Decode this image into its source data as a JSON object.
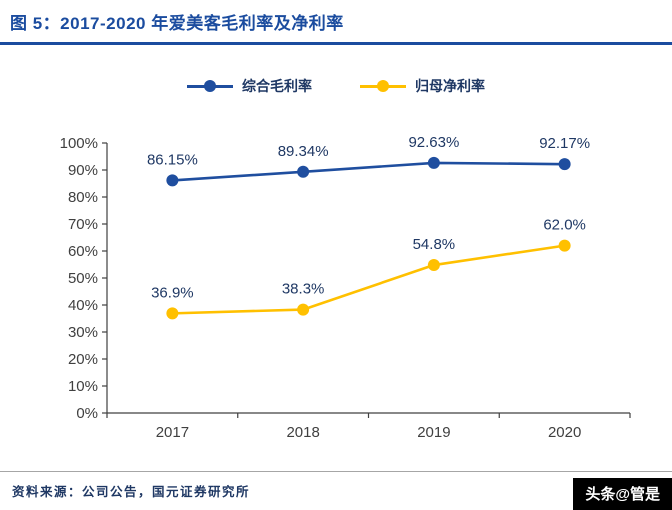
{
  "figure": {
    "title": "图 5：2017-2020 年爱美客毛利率及净利率",
    "source": "资料来源：公司公告，国元证券研究所",
    "watermark": "头条@管是",
    "accent_color": "#1B4C9F"
  },
  "chart_data": {
    "type": "line",
    "title": "2017-2020 年爱美客毛利率及净利率",
    "categories": [
      "2017",
      "2018",
      "2019",
      "2020"
    ],
    "series": [
      {
        "name": "综合毛利率",
        "color": "#1F4E9F",
        "values": [
          86.15,
          89.34,
          92.63,
          92.17
        ],
        "labels": [
          "86.15%",
          "89.34%",
          "92.63%",
          "92.17%"
        ]
      },
      {
        "name": "归母净利率",
        "color": "#FFC000",
        "values": [
          36.9,
          38.3,
          54.8,
          62.0
        ],
        "labels": [
          "36.9%",
          "38.3%",
          "54.8%",
          "62.0%"
        ]
      }
    ],
    "xlabel": "",
    "ylabel": "",
    "ylim": [
      0,
      100
    ],
    "ytick_step": 10,
    "ytick_format": "percent",
    "grid": false,
    "legend_position": "top",
    "axis_color": "#404040",
    "label_color": "#1F3864",
    "marker": "circle"
  }
}
